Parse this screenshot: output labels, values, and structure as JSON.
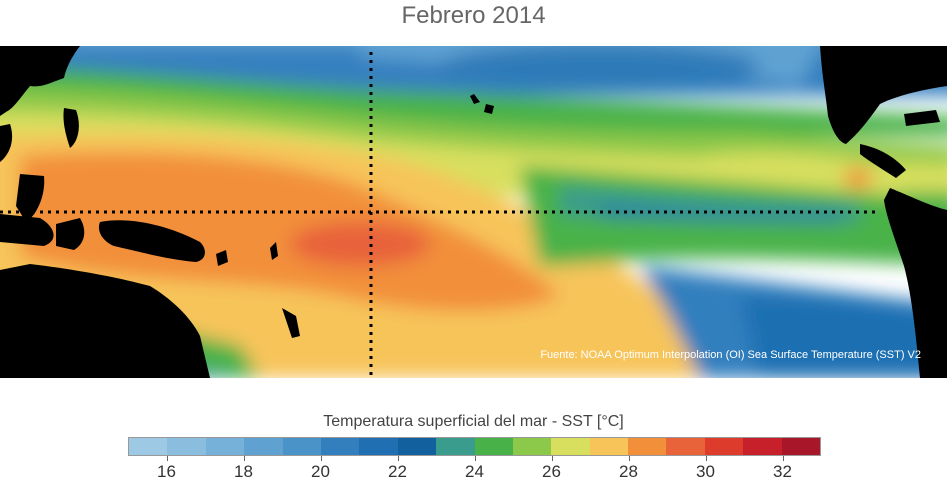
{
  "title": "Febrero 2014",
  "credit": "Fuente: NOAA Optimum Interpolation (OI) Sea Surface Temperature (SST) V2",
  "colorbar": {
    "title": "Temperatura superficial del mar - SST  [°C]",
    "min": 15,
    "max": 33,
    "step": 1,
    "colors": [
      "#9ec9e4",
      "#8bbddf",
      "#76b1da",
      "#5fa2d2",
      "#4a93c9",
      "#337fbe",
      "#1f6fb2",
      "#13609f",
      "#3a9c8c",
      "#48b249",
      "#8cc84a",
      "#d8df5e",
      "#f7c45a",
      "#f28f3b",
      "#e8623a",
      "#dd3b2c",
      "#c8202a",
      "#a8162a"
    ],
    "tick_labels": [
      "16",
      "18",
      "20",
      "22",
      "24",
      "26",
      "28",
      "30",
      "32"
    ]
  },
  "map": {
    "projection": "equirectangular, Pacific-centered",
    "reference_lines": [
      "equator (dotted)",
      "date line 180° (dotted)"
    ],
    "land_color": "#000000",
    "warm_pool_region": "western Pacific",
    "cold_tongue_region": "eastern equatorial Pacific"
  }
}
